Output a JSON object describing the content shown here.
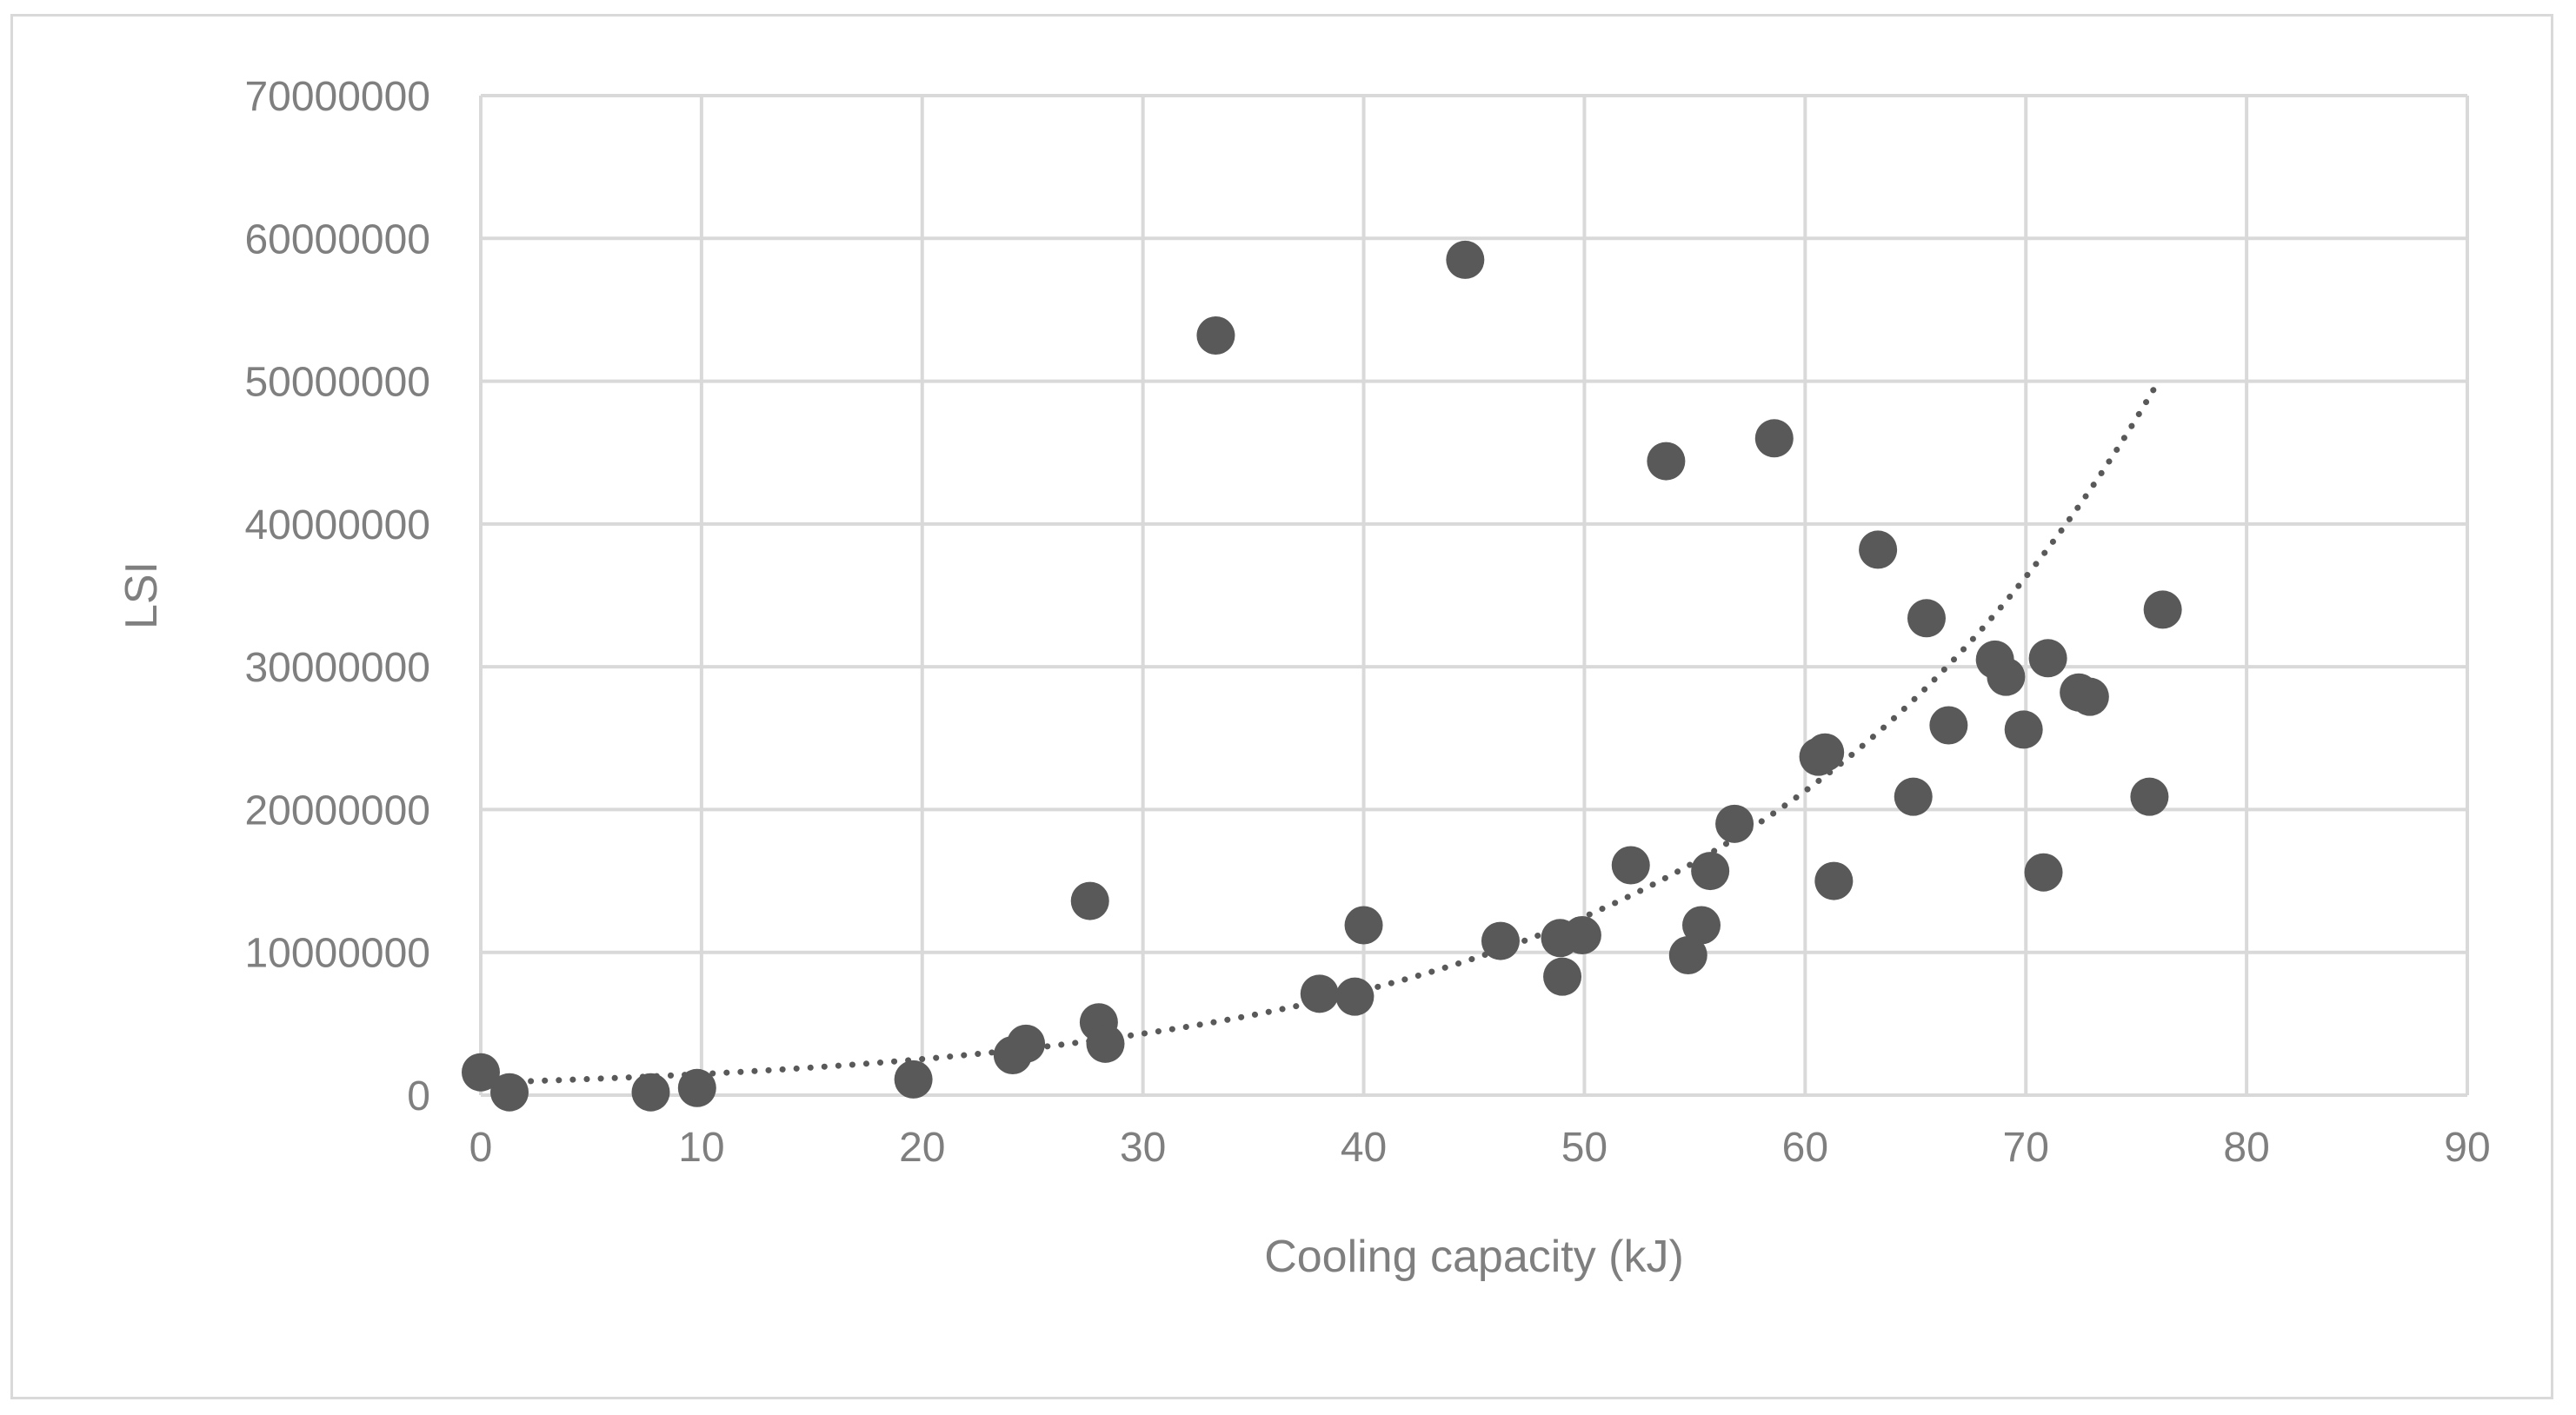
{
  "chart_data": {
    "type": "scatter",
    "title": "",
    "xlabel": "Cooling capacity (kJ)",
    "ylabel": "LSI",
    "xlim": [
      0,
      90
    ],
    "ylim": [
      0,
      70000000
    ],
    "x_ticks": [
      0,
      10,
      20,
      30,
      40,
      50,
      60,
      70,
      80,
      90
    ],
    "y_ticks": [
      0,
      10000000,
      20000000,
      30000000,
      40000000,
      50000000,
      60000000,
      70000000
    ],
    "x_tick_labels": [
      "0",
      "10",
      "20",
      "30",
      "40",
      "50",
      "60",
      "70",
      "80",
      "90"
    ],
    "y_tick_labels": [
      "0",
      "10000000",
      "20000000",
      "30000000",
      "40000000",
      "50000000",
      "60000000",
      "70000000"
    ],
    "grid": true,
    "legend": "none",
    "colors": {
      "points": "#595959",
      "trendline": "#595959",
      "grid": "#d9d9d9",
      "text": "#7f7f7f"
    },
    "series": [
      {
        "points": [
          [
            0.0,
            1600000
          ],
          [
            1.3,
            200000
          ],
          [
            7.7,
            200000
          ],
          [
            9.8,
            500000
          ],
          [
            19.6,
            1100000
          ],
          [
            24.1,
            2800000
          ],
          [
            24.7,
            3600000
          ],
          [
            27.6,
            13600000
          ],
          [
            28.0,
            5100000
          ],
          [
            28.3,
            3600000
          ],
          [
            33.3,
            53200000
          ],
          [
            38.0,
            7100000
          ],
          [
            39.6,
            6900000
          ],
          [
            40.0,
            11900000
          ],
          [
            44.6,
            58500000
          ],
          [
            46.2,
            10800000
          ],
          [
            48.9,
            11000000
          ],
          [
            49.0,
            8300000
          ],
          [
            49.9,
            11200000
          ],
          [
            52.1,
            16100000
          ],
          [
            53.7,
            44400000
          ],
          [
            54.7,
            9800000
          ],
          [
            55.3,
            11900000
          ],
          [
            55.7,
            15700000
          ],
          [
            56.8,
            19000000
          ],
          [
            58.6,
            46000000
          ],
          [
            60.6,
            23700000
          ],
          [
            60.9,
            24000000
          ],
          [
            61.3,
            15000000
          ],
          [
            63.3,
            38200000
          ],
          [
            64.9,
            20900000
          ],
          [
            65.5,
            33400000
          ],
          [
            66.5,
            25900000
          ],
          [
            68.6,
            30500000
          ],
          [
            69.1,
            29300000
          ],
          [
            69.9,
            25600000
          ],
          [
            70.8,
            15600000
          ],
          [
            71.0,
            30600000
          ],
          [
            72.4,
            28200000
          ],
          [
            72.9,
            27900000
          ],
          [
            75.6,
            20900000
          ],
          [
            76.2,
            34000000
          ]
        ]
      }
    ],
    "trendline": {
      "type": "exponential",
      "a": 870000,
      "b": 0.0533,
      "x_range": [
        1,
        76
      ]
    }
  }
}
